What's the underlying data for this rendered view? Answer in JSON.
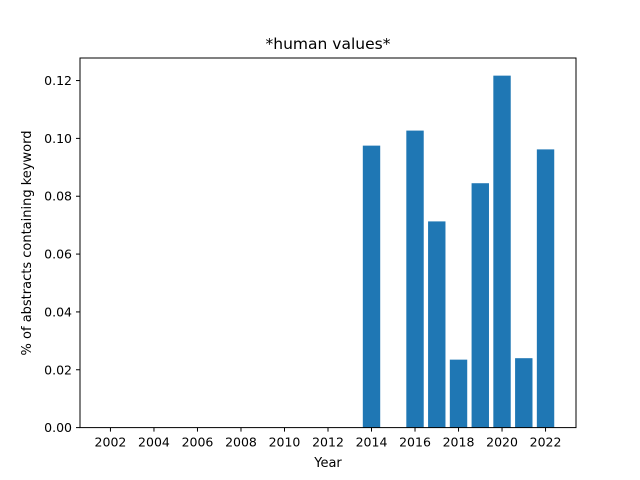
{
  "chart_data": {
    "type": "bar",
    "title": "*human values*",
    "xlabel": "Year",
    "ylabel": "% of abstracts containing keyword",
    "x": [
      2014,
      2016,
      2017,
      2018,
      2019,
      2020,
      2021,
      2022
    ],
    "values": [
      0.0975,
      0.1027,
      0.0713,
      0.0235,
      0.0845,
      0.1217,
      0.024,
      0.0962
    ],
    "xlim": [
      2000.6,
      2023.4
    ],
    "ylim": [
      0,
      0.1278
    ],
    "xticks": [
      2002,
      2004,
      2006,
      2008,
      2010,
      2012,
      2014,
      2016,
      2018,
      2020,
      2022
    ],
    "yticks": [
      0.0,
      0.02,
      0.04,
      0.06,
      0.08,
      0.1,
      0.12
    ],
    "ytick_labels": [
      "0.00",
      "0.02",
      "0.04",
      "0.06",
      "0.08",
      "0.10",
      "0.12"
    ],
    "bar_color": "#1f77b4",
    "grid": false,
    "legend": "none"
  }
}
